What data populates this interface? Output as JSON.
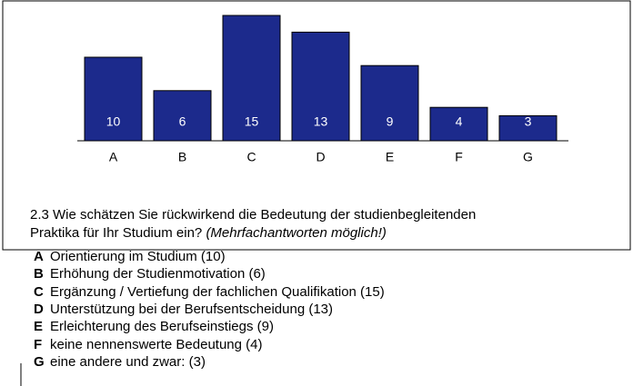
{
  "chart_data": {
    "type": "bar",
    "categories": [
      "A",
      "B",
      "C",
      "D",
      "E",
      "F",
      "G"
    ],
    "values": [
      10,
      6,
      15,
      13,
      9,
      4,
      3
    ],
    "color": "#1c2a8c",
    "ylim": [
      0,
      15
    ]
  },
  "question": {
    "text": "2.3 Wie schätzen Sie rückwirkend die Bedeutung der studienbegleitenden",
    "text2": "Praktika für Ihr Studium ein?",
    "note": "(Mehrfachantworten möglich!)"
  },
  "options": [
    {
      "letter": "A",
      "text": "Orientierung im Studium (10)"
    },
    {
      "letter": "B",
      "text": "Erhöhung der Studienmotivation (6)"
    },
    {
      "letter": "C",
      "text": "Ergänzung / Vertiefung der fachlichen Qualifikation (15)"
    },
    {
      "letter": "D",
      "text": "Unterstützung bei der Berufsentscheidung (13)"
    },
    {
      "letter": "E",
      "text": "Erleichterung des Berufseinstiegs (9)"
    },
    {
      "letter": "F",
      "text": "keine nennenswerte Bedeutung (4)"
    },
    {
      "letter": "G",
      "text": "eine andere und zwar: (3)"
    }
  ]
}
